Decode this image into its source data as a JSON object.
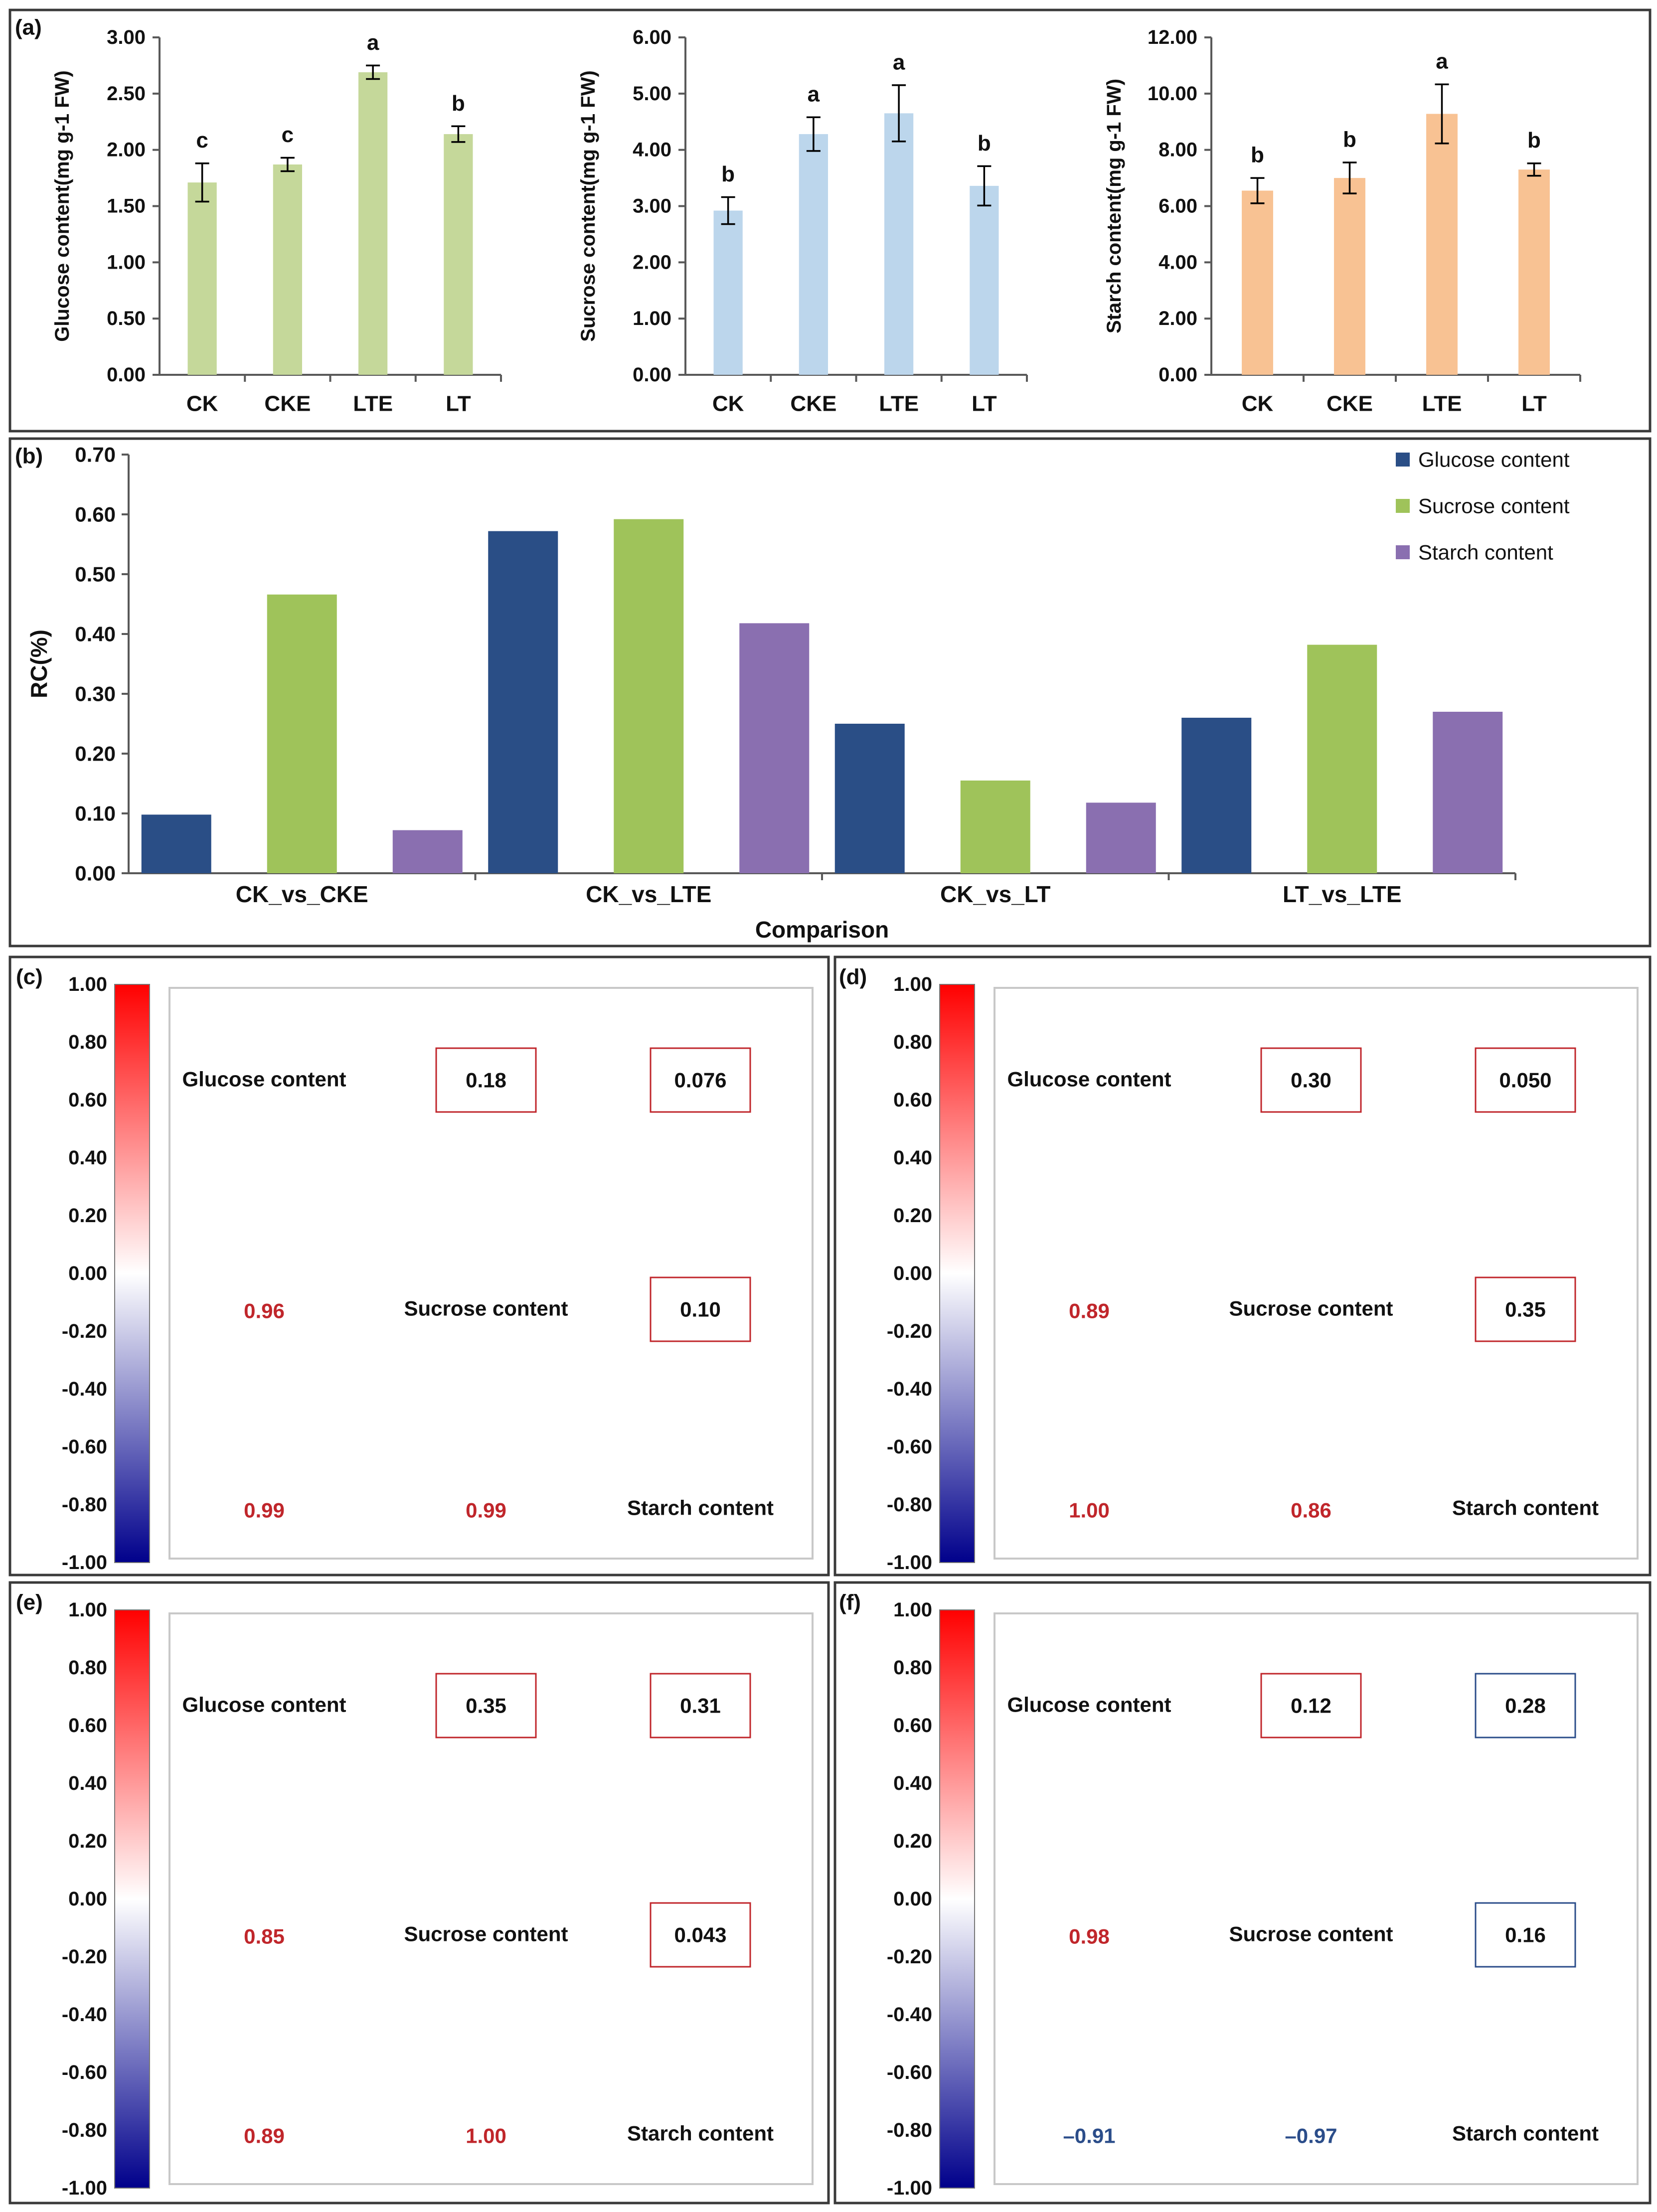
{
  "chart_data": [
    {
      "panel": "(a)",
      "type": "bar",
      "ylabel": "Glucose content(mg g-1 FW)",
      "categories": [
        "CK",
        "CKE",
        "LTE",
        "LT"
      ],
      "values": [
        1.71,
        1.87,
        2.69,
        2.14
      ],
      "errors": [
        0.17,
        0.06,
        0.06,
        0.07
      ],
      "letters": [
        "c",
        "c",
        "a",
        "b"
      ],
      "ylim": [
        0,
        3
      ],
      "ytick_labels": [
        "0.00",
        "0.50",
        "1.00",
        "1.50",
        "2.00",
        "2.50",
        "3.00"
      ],
      "color": "#c5d89a"
    },
    {
      "type": "bar",
      "ylabel": "Sucrose content(mg g-1 FW)",
      "categories": [
        "CK",
        "CKE",
        "LTE",
        "LT"
      ],
      "values": [
        2.92,
        4.28,
        4.65,
        3.36
      ],
      "errors": [
        0.24,
        0.3,
        0.5,
        0.35
      ],
      "letters": [
        "b",
        "a",
        "a",
        "b"
      ],
      "ylim": [
        0,
        6
      ],
      "ytick_labels": [
        "0.00",
        "1.00",
        "2.00",
        "3.00",
        "4.00",
        "5.00",
        "6.00"
      ],
      "color": "#bcd6ec"
    },
    {
      "type": "bar",
      "ylabel": "Starch content(mg g-1 FW)",
      "categories": [
        "CK",
        "CKE",
        "LTE",
        "LT"
      ],
      "values": [
        6.55,
        7.0,
        9.28,
        7.3
      ],
      "errors": [
        0.45,
        0.55,
        1.05,
        0.22
      ],
      "letters": [
        "b",
        "b",
        "a",
        "b"
      ],
      "ylim": [
        0,
        12
      ],
      "ytick_labels": [
        "0.00",
        "2.00",
        "4.00",
        "6.00",
        "8.00",
        "10.00",
        "12.00"
      ],
      "color": "#f8c293"
    },
    {
      "panel": "(b)",
      "type": "bar",
      "xlabel": "Comparison",
      "ylabel": "RC(%)",
      "categories": [
        "CK_vs_CKE",
        "CK_vs_LTE",
        "CK_vs_LT",
        "LT_vs_LTE"
      ],
      "series": [
        {
          "name": "Glucose content",
          "values": [
            0.098,
            0.572,
            0.25,
            0.26
          ],
          "color": "#2a4e86"
        },
        {
          "name": "Sucrose content",
          "values": [
            0.466,
            0.592,
            0.155,
            0.382
          ],
          "color": "#9fc35a"
        },
        {
          "name": "Starch content",
          "values": [
            0.072,
            0.418,
            0.118,
            0.27
          ],
          "color": "#8a6fb0"
        }
      ],
      "ylim": [
        0,
        0.7
      ],
      "ytick_labels": [
        "0.00",
        "0.10",
        "0.20",
        "0.30",
        "0.40",
        "0.50",
        "0.60",
        "0.70"
      ],
      "legend_position": "top-right"
    },
    {
      "panel": "(c)",
      "type": "heatmap",
      "variables": [
        "Glucose content",
        "Sucrose content",
        "Starch content"
      ],
      "lower": {
        "r21": "0.96",
        "r31": "0.99",
        "r32": "0.99"
      },
      "lower_colors": {
        "r21": "#c0262b",
        "r31": "#c0262b",
        "r32": "#c0262b"
      },
      "upper": {
        "p12": "0.18",
        "p13": "0.076",
        "p23": "0.10"
      },
      "upper_colors": {
        "p12": "#c0262b",
        "p13": "#c0262b",
        "p23": "#c0262b"
      },
      "scale_labels": [
        "1.00",
        "0.80",
        "0.60",
        "0.40",
        "0.20",
        "0.00",
        "-0.20",
        "-0.40",
        "-0.60",
        "-0.80",
        "-1.00"
      ],
      "scale_range": [
        -1,
        1
      ]
    },
    {
      "panel": "(d)",
      "type": "heatmap",
      "variables": [
        "Glucose content",
        "Sucrose content",
        "Starch content"
      ],
      "lower": {
        "r21": "0.89",
        "r31": "1.00",
        "r32": "0.86"
      },
      "lower_colors": {
        "r21": "#c0262b",
        "r31": "#c0262b",
        "r32": "#c0262b"
      },
      "upper": {
        "p12": "0.30",
        "p13": "0.050",
        "p23": "0.35"
      },
      "upper_colors": {
        "p12": "#c0262b",
        "p13": "#c0262b",
        "p23": "#c0262b"
      },
      "scale_labels": [
        "1.00",
        "0.80",
        "0.60",
        "0.40",
        "0.20",
        "0.00",
        "-0.20",
        "-0.40",
        "-0.60",
        "-0.80",
        "-1.00"
      ],
      "scale_range": [
        -1,
        1
      ]
    },
    {
      "panel": "(e)",
      "type": "heatmap",
      "variables": [
        "Glucose content",
        "Sucrose content",
        "Starch content"
      ],
      "lower": {
        "r21": "0.85",
        "r31": "0.89",
        "r32": "1.00"
      },
      "lower_colors": {
        "r21": "#c0262b",
        "r31": "#c0262b",
        "r32": "#c0262b"
      },
      "upper": {
        "p12": "0.35",
        "p13": "0.31",
        "p23": "0.043"
      },
      "upper_colors": {
        "p12": "#c0262b",
        "p13": "#c0262b",
        "p23": "#c0262b"
      },
      "scale_labels": [
        "1.00",
        "0.80",
        "0.60",
        "0.40",
        "0.20",
        "0.00",
        "-0.20",
        "-0.40",
        "-0.60",
        "-0.80",
        "-1.00"
      ],
      "scale_range": [
        -1,
        1
      ]
    },
    {
      "panel": "(f)",
      "type": "heatmap",
      "variables": [
        "Glucose content",
        "Sucrose content",
        "Starch content"
      ],
      "lower": {
        "r21": "0.98",
        "r31": "–0.91",
        "r32": "–0.97"
      },
      "lower_colors": {
        "r21": "#c0262b",
        "r31": "#2b4d8a",
        "r32": "#2b4d8a"
      },
      "upper": {
        "p12": "0.12",
        "p13": "0.28",
        "p23": "0.16"
      },
      "upper_colors": {
        "p12": "#c0262b",
        "p13": "#2b4d8a",
        "p23": "#2b4d8a"
      },
      "scale_labels": [
        "1.00",
        "0.80",
        "0.60",
        "0.40",
        "0.20",
        "0.00",
        "-0.20",
        "-0.40",
        "-0.60",
        "-0.80",
        "-1.00"
      ],
      "scale_range": [
        -1,
        1
      ]
    }
  ],
  "panel_labels": [
    "(a)",
    "(b)",
    "(c)",
    "(d)",
    "(e)",
    "(f)"
  ],
  "colors": {
    "frame": "#3a3a3a",
    "axis": "#595959",
    "text": "#111111",
    "inner_box": "#c8c8c8",
    "scale_top": "#ff0000",
    "scale_mid": "#ffffff",
    "scale_bottom": "#00008b"
  }
}
